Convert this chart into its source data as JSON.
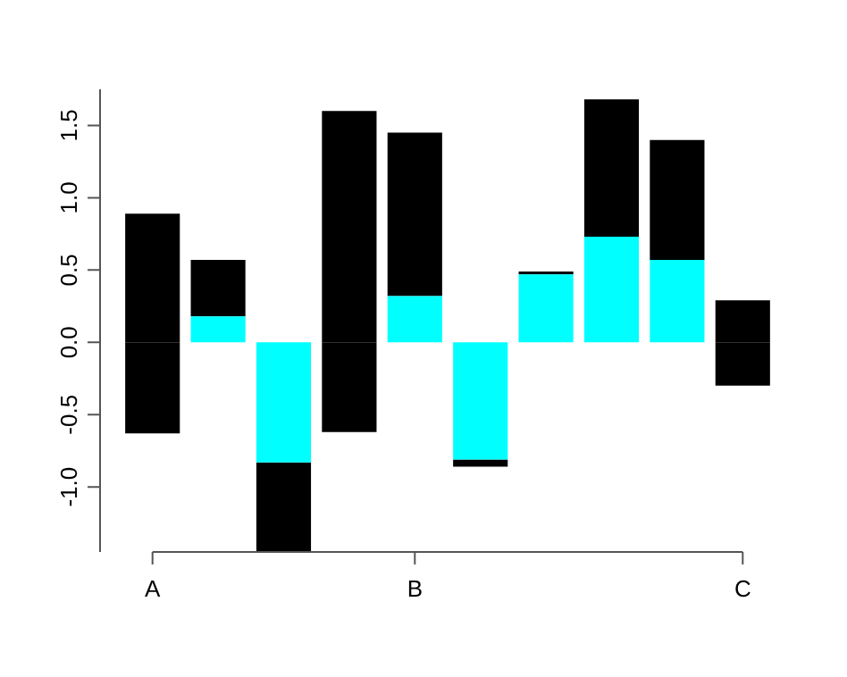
{
  "chart_data": {
    "type": "bar",
    "stacked": true,
    "legend": false,
    "categories": [
      "A",
      null,
      null,
      null,
      "B",
      null,
      null,
      null,
      null,
      "C"
    ],
    "ylim": [
      -1.45,
      1.75
    ],
    "yticks": [
      {
        "value": -1,
        "label": "-1.0"
      },
      -0.5,
      {
        "value": 0,
        "label": "0.0"
      },
      0.5,
      {
        "value": 1,
        "label": "1.0"
      },
      1.5
    ],
    "series": [
      {
        "color": "#00ffff",
        "values": [
          null,
          0.18,
          -0.83,
          null,
          0.32,
          -0.81,
          0.47,
          0.73,
          0.57,
          null
        ]
      },
      {
        "color": "#000000",
        "values": [
          0.89,
          0.39,
          -0.62,
          1.6,
          1.13,
          -0.05,
          0.02,
          0.95,
          0.83,
          0.29
        ]
      },
      {
        "color": "#000000",
        "values": [
          -0.63,
          null,
          null,
          -0.62,
          null,
          null,
          null,
          null,
          null,
          -0.3
        ]
      }
    ]
  }
}
